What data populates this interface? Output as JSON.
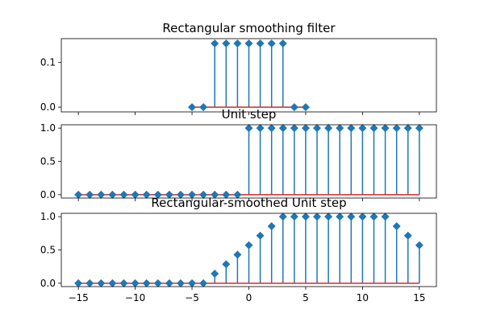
{
  "chart_data": [
    {
      "type": "stem",
      "title": "Rectangular smoothing filter",
      "xlim": [
        -16.5,
        16.5
      ],
      "ylim": [
        -0.0107,
        0.1536
      ],
      "yticks": [
        0.0,
        0.1
      ],
      "ytick_labels": [
        "0.0",
        "0.1"
      ],
      "xtick_labels_shown": false,
      "x": [
        -5,
        -4,
        -3,
        -2,
        -1,
        0,
        1,
        2,
        3,
        4,
        5
      ],
      "y": [
        0,
        0,
        0.142857,
        0.142857,
        0.142857,
        0.142857,
        0.142857,
        0.142857,
        0.142857,
        0,
        0
      ],
      "marker": "diamond",
      "stem_color": "#1f77b4",
      "baseline_color": "#d62728"
    },
    {
      "type": "stem",
      "title": "Unit step",
      "xlim": [
        -16.5,
        16.5
      ],
      "ylim": [
        -0.05,
        1.05
      ],
      "yticks": [
        0.0,
        0.5,
        1.0
      ],
      "ytick_labels": [
        "0.0",
        "0.5",
        "1.0"
      ],
      "xtick_labels_shown": false,
      "x": [
        -15,
        -14,
        -13,
        -12,
        -11,
        -10,
        -9,
        -8,
        -7,
        -6,
        -5,
        -4,
        -3,
        -2,
        -1,
        0,
        1,
        2,
        3,
        4,
        5,
        6,
        7,
        8,
        9,
        10,
        11,
        12,
        13,
        14,
        15
      ],
      "y": [
        0,
        0,
        0,
        0,
        0,
        0,
        0,
        0,
        0,
        0,
        0,
        0,
        0,
        0,
        0,
        1,
        1,
        1,
        1,
        1,
        1,
        1,
        1,
        1,
        1,
        1,
        1,
        1,
        1,
        1,
        1
      ],
      "marker": "diamond",
      "stem_color": "#1f77b4",
      "baseline_color": "#d62728"
    },
    {
      "type": "stem",
      "title": "Rectangular-smoothed Unit step",
      "xlim": [
        -16.5,
        16.5
      ],
      "ylim": [
        -0.05,
        1.05
      ],
      "yticks": [
        0.0,
        0.5,
        1.0
      ],
      "ytick_labels": [
        "0.0",
        "0.5",
        "1.0"
      ],
      "xticks": [
        -15,
        -10,
        -5,
        0,
        5,
        10,
        15
      ],
      "xtick_labels": [
        "−15",
        "−10",
        "−5",
        "0",
        "5",
        "10",
        "15"
      ],
      "xtick_labels_shown": true,
      "x": [
        -15,
        -14,
        -13,
        -12,
        -11,
        -10,
        -9,
        -8,
        -7,
        -6,
        -5,
        -4,
        -3,
        -2,
        -1,
        0,
        1,
        2,
        3,
        4,
        5,
        6,
        7,
        8,
        9,
        10,
        11,
        12,
        13,
        14,
        15
      ],
      "y": [
        0,
        0,
        0,
        0,
        0,
        0,
        0,
        0,
        0,
        0,
        0,
        0,
        0.142857,
        0.285714,
        0.428571,
        0.571429,
        0.714286,
        0.857143,
        1,
        1,
        1,
        1,
        1,
        1,
        1,
        1,
        1,
        1,
        0.857143,
        0.714286,
        0.571429
      ],
      "marker": "diamond",
      "stem_color": "#1f77b4",
      "baseline_color": "#d62728"
    }
  ]
}
